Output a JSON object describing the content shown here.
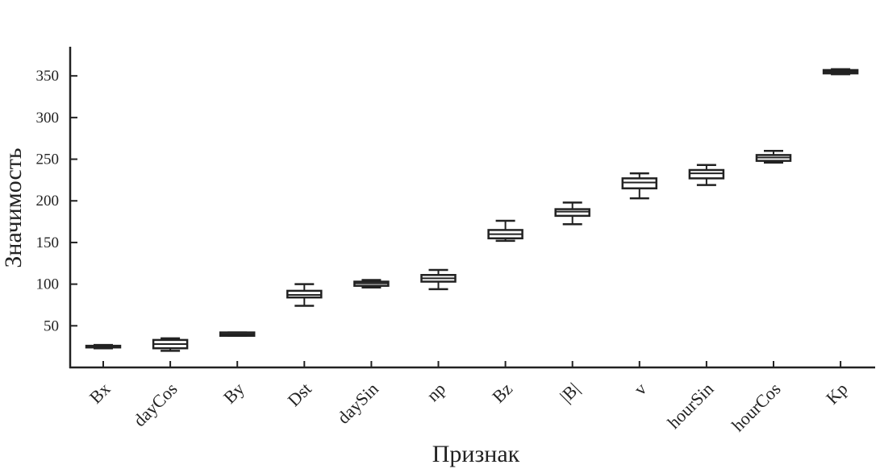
{
  "chart_data": {
    "type": "box",
    "title": "",
    "xlabel": "Признак",
    "ylabel": "Значимость",
    "ylim": [
      0,
      385
    ],
    "yticks": [
      50,
      100,
      150,
      200,
      250,
      300,
      350
    ],
    "grid": false,
    "categories": [
      "Bx",
      "dayCos",
      "By",
      "Dst",
      "daySin",
      "np",
      "Bz",
      "|B|",
      "v",
      "hourSin",
      "hourCos",
      "Kp"
    ],
    "boxes": [
      {
        "min": 23,
        "q1": 24,
        "median": 25,
        "q3": 26,
        "max": 27
      },
      {
        "min": 20,
        "q1": 23,
        "median": 28,
        "q3": 33,
        "max": 35
      },
      {
        "min": 38,
        "q1": 38,
        "median": 40,
        "q3": 42,
        "max": 42
      },
      {
        "min": 74,
        "q1": 84,
        "median": 87,
        "q3": 92,
        "max": 100
      },
      {
        "min": 96,
        "q1": 98,
        "median": 101,
        "q3": 103,
        "max": 105
      },
      {
        "min": 94,
        "q1": 103,
        "median": 107,
        "q3": 111,
        "max": 117
      },
      {
        "min": 152,
        "q1": 155,
        "median": 160,
        "q3": 165,
        "max": 176
      },
      {
        "min": 172,
        "q1": 182,
        "median": 187,
        "q3": 190,
        "max": 198
      },
      {
        "min": 203,
        "q1": 215,
        "median": 222,
        "q3": 227,
        "max": 233
      },
      {
        "min": 219,
        "q1": 227,
        "median": 233,
        "q3": 237,
        "max": 243
      },
      {
        "min": 246,
        "q1": 248,
        "median": 252,
        "q3": 255,
        "max": 260
      },
      {
        "min": 352,
        "q1": 353,
        "median": 355,
        "q3": 357,
        "max": 358
      }
    ],
    "colors": {
      "stroke": "#222222",
      "background": "#ffffff"
    }
  }
}
